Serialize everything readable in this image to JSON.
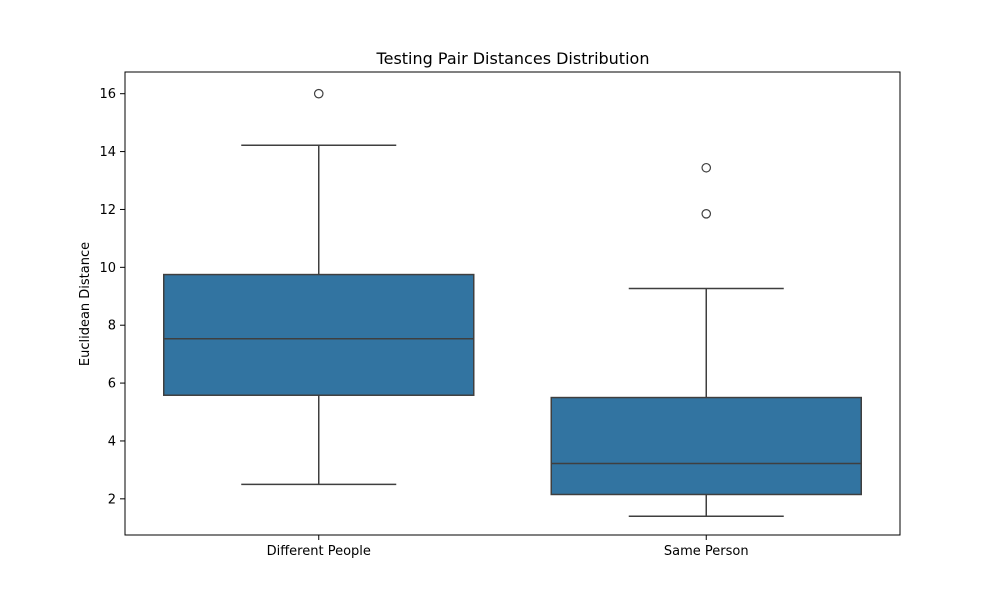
{
  "chart_data": {
    "type": "box",
    "title": "Testing Pair Distances Distribution",
    "xlabel": "",
    "ylabel": "Euclidean Distance",
    "categories": [
      "Different People",
      "Same Person"
    ],
    "ylim": [
      0.75,
      16.75
    ],
    "yticks": [
      2,
      4,
      6,
      8,
      10,
      12,
      14,
      16
    ],
    "grid": false,
    "legend": "none",
    "box_color": "#3274a1",
    "edge_color": "#3f3f3f",
    "boxes": [
      {
        "category": "Different People",
        "whisker_low": 2.5,
        "q1": 5.58,
        "median": 7.53,
        "q3": 9.75,
        "whisker_high": 14.22,
        "outliers": [
          16.0
        ]
      },
      {
        "category": "Same Person",
        "whisker_low": 1.4,
        "q1": 2.15,
        "median": 3.22,
        "q3": 5.5,
        "whisker_high": 9.27,
        "outliers": [
          11.85,
          13.44
        ]
      }
    ]
  }
}
